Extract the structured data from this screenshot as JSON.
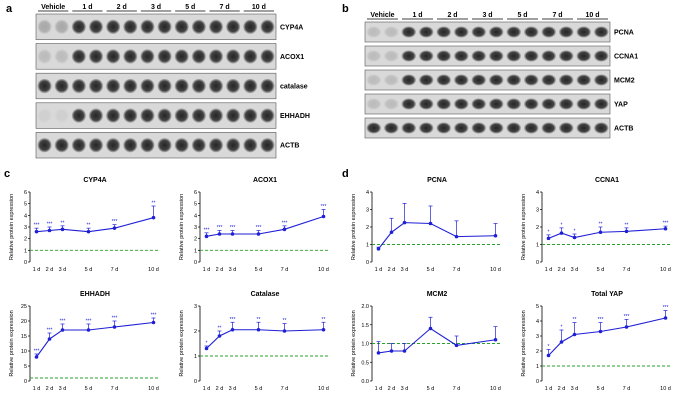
{
  "panels": {
    "a": {
      "letter": "a",
      "lanes": [
        "Vehicle",
        "1 d",
        "2 d",
        "3 d",
        "5 d",
        "7 d",
        "10 d"
      ],
      "proteins": [
        "CYP4A",
        "ACOX1",
        "catalase",
        "EHHADH",
        "ACTB"
      ]
    },
    "b": {
      "letter": "b",
      "lanes": [
        "Vehicle",
        "1 d",
        "2 d",
        "3 d",
        "5 d",
        "7 d",
        "10 d"
      ],
      "proteins": [
        "PCNA",
        "CCNA1",
        "MCM2",
        "YAP",
        "ACTB"
      ]
    },
    "c": {
      "letter": "c"
    },
    "d": {
      "letter": "d"
    }
  },
  "chart_data": [
    {
      "type": "line",
      "panel": "c",
      "title": "CYP4A",
      "ylabel": "Relative protein expression",
      "x": [
        "1 d",
        "2 d",
        "3 d",
        "5 d",
        "7 d",
        "10 d"
      ],
      "values": [
        2.6,
        2.7,
        2.8,
        2.6,
        2.9,
        3.8
      ],
      "errors": [
        0.3,
        0.3,
        0.3,
        0.3,
        0.3,
        1.0
      ],
      "significance": [
        "***",
        "***",
        "**",
        "**",
        "***",
        "**"
      ],
      "ylim": [
        0,
        6
      ],
      "yticks": [
        0,
        1,
        2,
        3,
        4,
        5,
        6
      ],
      "baseline": 1
    },
    {
      "type": "line",
      "panel": "c",
      "title": "ACOX1",
      "ylabel": "Relative protein expression",
      "x": [
        "1 d",
        "2 d",
        "3 d",
        "5 d",
        "7 d",
        "10 d"
      ],
      "values": [
        2.2,
        2.4,
        2.4,
        2.4,
        2.8,
        3.9
      ],
      "errors": [
        0.3,
        0.3,
        0.3,
        0.3,
        0.3,
        0.6
      ],
      "significance": [
        "***",
        "***",
        "***",
        "***",
        "***",
        "***"
      ],
      "ylim": [
        0,
        6
      ],
      "yticks": [
        0,
        1,
        2,
        3,
        4,
        5,
        6
      ],
      "baseline": 1
    },
    {
      "type": "line",
      "panel": "c",
      "title": "EHHADH",
      "ylabel": "Relative protein expression",
      "x": [
        "1 d",
        "2 d",
        "3 d",
        "5 d",
        "7 d",
        "10 d"
      ],
      "values": [
        8,
        14,
        17,
        17,
        18,
        19.5
      ],
      "errors": [
        1,
        2,
        2,
        2,
        2,
        1.5
      ],
      "significance": [
        "***",
        "***",
        "***",
        "***",
        "***",
        "***"
      ],
      "ylim": [
        0,
        25
      ],
      "yticks": [
        0,
        5,
        10,
        15,
        20,
        25
      ],
      "baseline": 1
    },
    {
      "type": "line",
      "panel": "c",
      "title": "Catalase",
      "ylabel": "Relative protein expression",
      "x": [
        "1 d",
        "2 d",
        "3 d",
        "5 d",
        "7 d",
        "10 d"
      ],
      "values": [
        1.3,
        1.8,
        2.05,
        2.05,
        2.0,
        2.05
      ],
      "errors": [
        0.1,
        0.2,
        0.3,
        0.3,
        0.3,
        0.3
      ],
      "significance": [
        "*",
        "**",
        "***",
        "**",
        "**",
        "**"
      ],
      "ylim": [
        0,
        3
      ],
      "yticks": [
        0,
        1,
        2,
        3
      ],
      "baseline": 1
    },
    {
      "type": "line",
      "panel": "d",
      "title": "PCNA",
      "ylabel": "Relative protein expression",
      "x": [
        "1 d",
        "2 d",
        "3 d",
        "5 d",
        "7 d",
        "10 d"
      ],
      "values": [
        0.75,
        1.7,
        2.25,
        2.2,
        1.45,
        1.5
      ],
      "errors": [
        0.1,
        0.8,
        1.1,
        1.0,
        0.9,
        0.7
      ],
      "significance": [
        "",
        "",
        "",
        "",
        "",
        ""
      ],
      "ylim": [
        0,
        4
      ],
      "yticks": [
        0,
        1,
        2,
        3,
        4
      ],
      "baseline": 1
    },
    {
      "type": "line",
      "panel": "d",
      "title": "CCNA1",
      "ylabel": "Relative protein expression",
      "x": [
        "1 d",
        "2 d",
        "3 d",
        "5 d",
        "7 d",
        "10 d"
      ],
      "values": [
        1.35,
        1.65,
        1.4,
        1.7,
        1.75,
        1.9
      ],
      "errors": [
        0.2,
        0.3,
        0.2,
        0.3,
        0.2,
        0.15
      ],
      "significance": [
        "*",
        "*",
        "*",
        "**",
        "**",
        "***"
      ],
      "ylim": [
        0,
        4
      ],
      "yticks": [
        0,
        1,
        2,
        3,
        4
      ],
      "baseline": 1
    },
    {
      "type": "line",
      "panel": "d",
      "title": "MCM2",
      "ylabel": "Relative protein expression",
      "x": [
        "1 d",
        "2 d",
        "3 d",
        "5 d",
        "7 d",
        "10 d"
      ],
      "values": [
        0.75,
        0.8,
        0.8,
        1.4,
        0.95,
        1.1
      ],
      "errors": [
        0.3,
        0.2,
        0.2,
        0.3,
        0.25,
        0.35
      ],
      "significance": [
        "",
        "",
        "",
        "",
        "",
        ""
      ],
      "ylim": [
        0,
        2.0
      ],
      "yticks": [
        0.0,
        0.5,
        1.0,
        1.5,
        2.0
      ],
      "baseline": 1
    },
    {
      "type": "line",
      "panel": "d",
      "title": "Total YAP",
      "ylabel": "Relative protein expression",
      "x": [
        "1 d",
        "2 d",
        "3 d",
        "5 d",
        "7 d",
        "10 d"
      ],
      "values": [
        1.7,
        2.6,
        3.1,
        3.3,
        3.6,
        4.2
      ],
      "errors": [
        0.4,
        0.8,
        0.8,
        0.6,
        0.5,
        0.5
      ],
      "significance": [
        "*",
        "*",
        "**",
        "***",
        "***",
        "***"
      ],
      "ylim": [
        0,
        5
      ],
      "yticks": [
        0,
        1,
        2,
        3,
        4,
        5
      ],
      "baseline": 1
    }
  ],
  "colors": {
    "line": "#1f1fd6",
    "baseline": "#2aa12a",
    "axis": "#000000"
  }
}
